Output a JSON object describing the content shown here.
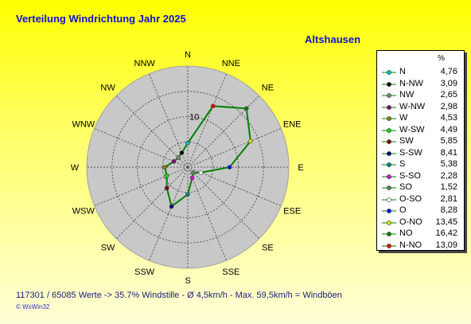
{
  "title": "Verteilung Windrichtung   Jahr 2025",
  "station": "Altshausen",
  "chart_data": {
    "type": "radar",
    "directions": [
      "N",
      "NNE",
      "NE",
      "ENE",
      "E",
      "ESE",
      "SE",
      "SSE",
      "S",
      "SSW",
      "SW",
      "WSW",
      "W",
      "WNW",
      "NW",
      "NNW"
    ],
    "ring_label": "10",
    "rlim": [
      0,
      20
    ],
    "rings": [
      5,
      10,
      15,
      20
    ],
    "series_values": [
      4.76,
      13.09,
      16.42,
      13.45,
      8.28,
      2.81,
      1.52,
      2.28,
      5.38,
      8.41,
      5.85,
      4.49,
      4.53,
      2.98,
      2.65,
      3.09
    ],
    "line_color": "#008000",
    "legend_unit": "%",
    "legend": [
      {
        "name": "N",
        "value": "4,76",
        "color": "#00c0c0"
      },
      {
        "name": "N-NW",
        "value": "3,09",
        "color": "#000000"
      },
      {
        "name": "NW",
        "value": "2,65",
        "color": "#808080"
      },
      {
        "name": "W-NW",
        "value": "2,98",
        "color": "#800080"
      },
      {
        "name": "W",
        "value": "4,53",
        "color": "#808000"
      },
      {
        "name": "W-SW",
        "value": "4,49",
        "color": "#00e000"
      },
      {
        "name": "SW",
        "value": "5,85",
        "color": "#800000"
      },
      {
        "name": "S-SW",
        "value": "8,41",
        "color": "#000080"
      },
      {
        "name": "S",
        "value": "5,38",
        "color": "#008080"
      },
      {
        "name": "S-SO",
        "value": "2,28",
        "color": "#e000e0"
      },
      {
        "name": "SO",
        "value": "1,52",
        "color": "#608060"
      },
      {
        "name": "O-SO",
        "value": "2,81",
        "color": "#ffffff"
      },
      {
        "name": "O",
        "value": "8,28",
        "color": "#0000ff"
      },
      {
        "name": "O-NO",
        "value": "13,45",
        "color": "#e0e000"
      },
      {
        "name": "NO",
        "value": "16,42",
        "color": "#008000"
      },
      {
        "name": "N-NO",
        "value": "13,09",
        "color": "#ff0000"
      }
    ]
  },
  "footer": "117301 / 65085 Werte  -> 35.7% Windstille   -   Ø 4,5km/h  -  Max. 59,5km/h = Windböen",
  "credit": "© WsWin32"
}
